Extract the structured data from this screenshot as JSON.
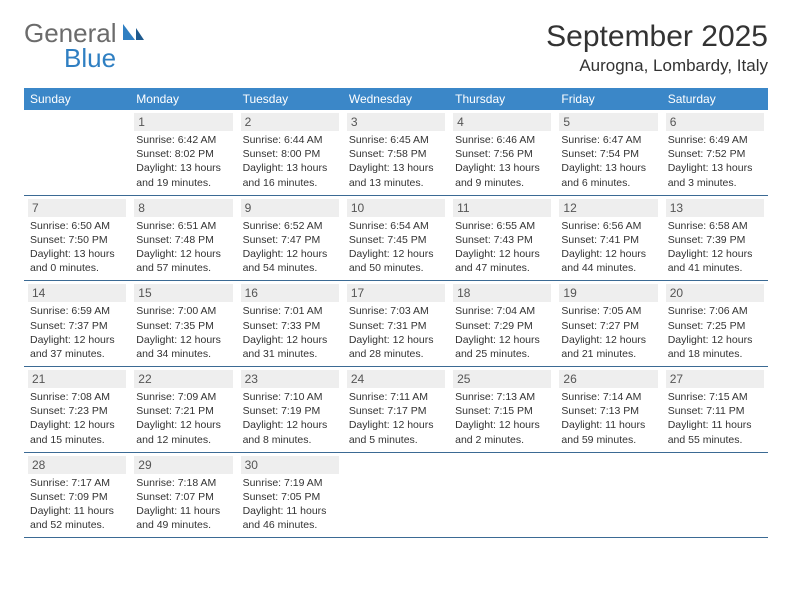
{
  "logo": {
    "text1": "General",
    "text2": "Blue"
  },
  "title": "September 2025",
  "location": "Aurogna, Lombardy, Italy",
  "colors": {
    "header_bg": "#3b87c8",
    "header_text": "#ffffff",
    "daynum_bg": "#eeeeee",
    "daynum_text": "#555555",
    "rule": "#3b6a94",
    "body_text": "#333333",
    "logo_gray": "#6b6b6b",
    "logo_blue": "#2f7fc2"
  },
  "weekdays": [
    "Sunday",
    "Monday",
    "Tuesday",
    "Wednesday",
    "Thursday",
    "Friday",
    "Saturday"
  ],
  "weeks": [
    [
      {
        "num": "",
        "lines": []
      },
      {
        "num": "1",
        "lines": [
          "Sunrise: 6:42 AM",
          "Sunset: 8:02 PM",
          "Daylight: 13 hours",
          "and 19 minutes."
        ]
      },
      {
        "num": "2",
        "lines": [
          "Sunrise: 6:44 AM",
          "Sunset: 8:00 PM",
          "Daylight: 13 hours",
          "and 16 minutes."
        ]
      },
      {
        "num": "3",
        "lines": [
          "Sunrise: 6:45 AM",
          "Sunset: 7:58 PM",
          "Daylight: 13 hours",
          "and 13 minutes."
        ]
      },
      {
        "num": "4",
        "lines": [
          "Sunrise: 6:46 AM",
          "Sunset: 7:56 PM",
          "Daylight: 13 hours",
          "and 9 minutes."
        ]
      },
      {
        "num": "5",
        "lines": [
          "Sunrise: 6:47 AM",
          "Sunset: 7:54 PM",
          "Daylight: 13 hours",
          "and 6 minutes."
        ]
      },
      {
        "num": "6",
        "lines": [
          "Sunrise: 6:49 AM",
          "Sunset: 7:52 PM",
          "Daylight: 13 hours",
          "and 3 minutes."
        ]
      }
    ],
    [
      {
        "num": "7",
        "lines": [
          "Sunrise: 6:50 AM",
          "Sunset: 7:50 PM",
          "Daylight: 13 hours",
          "and 0 minutes."
        ]
      },
      {
        "num": "8",
        "lines": [
          "Sunrise: 6:51 AM",
          "Sunset: 7:48 PM",
          "Daylight: 12 hours",
          "and 57 minutes."
        ]
      },
      {
        "num": "9",
        "lines": [
          "Sunrise: 6:52 AM",
          "Sunset: 7:47 PM",
          "Daylight: 12 hours",
          "and 54 minutes."
        ]
      },
      {
        "num": "10",
        "lines": [
          "Sunrise: 6:54 AM",
          "Sunset: 7:45 PM",
          "Daylight: 12 hours",
          "and 50 minutes."
        ]
      },
      {
        "num": "11",
        "lines": [
          "Sunrise: 6:55 AM",
          "Sunset: 7:43 PM",
          "Daylight: 12 hours",
          "and 47 minutes."
        ]
      },
      {
        "num": "12",
        "lines": [
          "Sunrise: 6:56 AM",
          "Sunset: 7:41 PM",
          "Daylight: 12 hours",
          "and 44 minutes."
        ]
      },
      {
        "num": "13",
        "lines": [
          "Sunrise: 6:58 AM",
          "Sunset: 7:39 PM",
          "Daylight: 12 hours",
          "and 41 minutes."
        ]
      }
    ],
    [
      {
        "num": "14",
        "lines": [
          "Sunrise: 6:59 AM",
          "Sunset: 7:37 PM",
          "Daylight: 12 hours",
          "and 37 minutes."
        ]
      },
      {
        "num": "15",
        "lines": [
          "Sunrise: 7:00 AM",
          "Sunset: 7:35 PM",
          "Daylight: 12 hours",
          "and 34 minutes."
        ]
      },
      {
        "num": "16",
        "lines": [
          "Sunrise: 7:01 AM",
          "Sunset: 7:33 PM",
          "Daylight: 12 hours",
          "and 31 minutes."
        ]
      },
      {
        "num": "17",
        "lines": [
          "Sunrise: 7:03 AM",
          "Sunset: 7:31 PM",
          "Daylight: 12 hours",
          "and 28 minutes."
        ]
      },
      {
        "num": "18",
        "lines": [
          "Sunrise: 7:04 AM",
          "Sunset: 7:29 PM",
          "Daylight: 12 hours",
          "and 25 minutes."
        ]
      },
      {
        "num": "19",
        "lines": [
          "Sunrise: 7:05 AM",
          "Sunset: 7:27 PM",
          "Daylight: 12 hours",
          "and 21 minutes."
        ]
      },
      {
        "num": "20",
        "lines": [
          "Sunrise: 7:06 AM",
          "Sunset: 7:25 PM",
          "Daylight: 12 hours",
          "and 18 minutes."
        ]
      }
    ],
    [
      {
        "num": "21",
        "lines": [
          "Sunrise: 7:08 AM",
          "Sunset: 7:23 PM",
          "Daylight: 12 hours",
          "and 15 minutes."
        ]
      },
      {
        "num": "22",
        "lines": [
          "Sunrise: 7:09 AM",
          "Sunset: 7:21 PM",
          "Daylight: 12 hours",
          "and 12 minutes."
        ]
      },
      {
        "num": "23",
        "lines": [
          "Sunrise: 7:10 AM",
          "Sunset: 7:19 PM",
          "Daylight: 12 hours",
          "and 8 minutes."
        ]
      },
      {
        "num": "24",
        "lines": [
          "Sunrise: 7:11 AM",
          "Sunset: 7:17 PM",
          "Daylight: 12 hours",
          "and 5 minutes."
        ]
      },
      {
        "num": "25",
        "lines": [
          "Sunrise: 7:13 AM",
          "Sunset: 7:15 PM",
          "Daylight: 12 hours",
          "and 2 minutes."
        ]
      },
      {
        "num": "26",
        "lines": [
          "Sunrise: 7:14 AM",
          "Sunset: 7:13 PM",
          "Daylight: 11 hours",
          "and 59 minutes."
        ]
      },
      {
        "num": "27",
        "lines": [
          "Sunrise: 7:15 AM",
          "Sunset: 7:11 PM",
          "Daylight: 11 hours",
          "and 55 minutes."
        ]
      }
    ],
    [
      {
        "num": "28",
        "lines": [
          "Sunrise: 7:17 AM",
          "Sunset: 7:09 PM",
          "Daylight: 11 hours",
          "and 52 minutes."
        ]
      },
      {
        "num": "29",
        "lines": [
          "Sunrise: 7:18 AM",
          "Sunset: 7:07 PM",
          "Daylight: 11 hours",
          "and 49 minutes."
        ]
      },
      {
        "num": "30",
        "lines": [
          "Sunrise: 7:19 AM",
          "Sunset: 7:05 PM",
          "Daylight: 11 hours",
          "and 46 minutes."
        ]
      },
      {
        "num": "",
        "lines": []
      },
      {
        "num": "",
        "lines": []
      },
      {
        "num": "",
        "lines": []
      },
      {
        "num": "",
        "lines": []
      }
    ]
  ]
}
